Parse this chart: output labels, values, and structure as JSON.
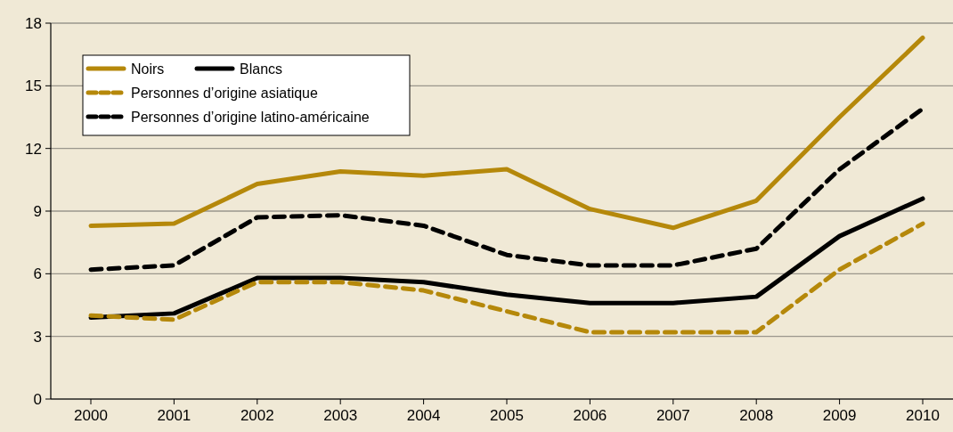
{
  "chart_data": {
    "type": "line",
    "categories": [
      "2000",
      "2001",
      "2002",
      "2003",
      "2004",
      "2005",
      "2006",
      "2007",
      "2008",
      "2009",
      "2010"
    ],
    "ylim": [
      0,
      18
    ],
    "yticks": [
      0,
      3,
      6,
      9,
      12,
      15,
      18
    ],
    "grid": "y",
    "legend": "top left",
    "series": [
      {
        "name": "Noirs",
        "color": "#b5880a",
        "line_style": "solid",
        "values": [
          8.3,
          8.4,
          10.3,
          10.9,
          10.7,
          11.0,
          9.1,
          8.2,
          9.5,
          13.5,
          17.3
        ]
      },
      {
        "name": "Blancs",
        "color": "#000000",
        "line_style": "solid",
        "values": [
          3.9,
          4.1,
          5.8,
          5.8,
          5.6,
          5.0,
          4.6,
          4.6,
          4.9,
          7.8,
          9.6
        ]
      },
      {
        "name": "Personnes d’origine asiatique",
        "color": "#b5880a",
        "line_style": "dashed",
        "values": [
          4.0,
          3.8,
          5.6,
          5.6,
          5.2,
          4.2,
          3.2,
          3.2,
          3.2,
          6.2,
          8.4
        ]
      },
      {
        "name": "Personnes d’origine latino-américaine",
        "color": "#000000",
        "line_style": "dashed",
        "values": [
          6.2,
          6.4,
          8.7,
          8.8,
          8.3,
          6.9,
          6.4,
          6.4,
          7.2,
          11.0,
          13.9
        ]
      }
    ]
  }
}
